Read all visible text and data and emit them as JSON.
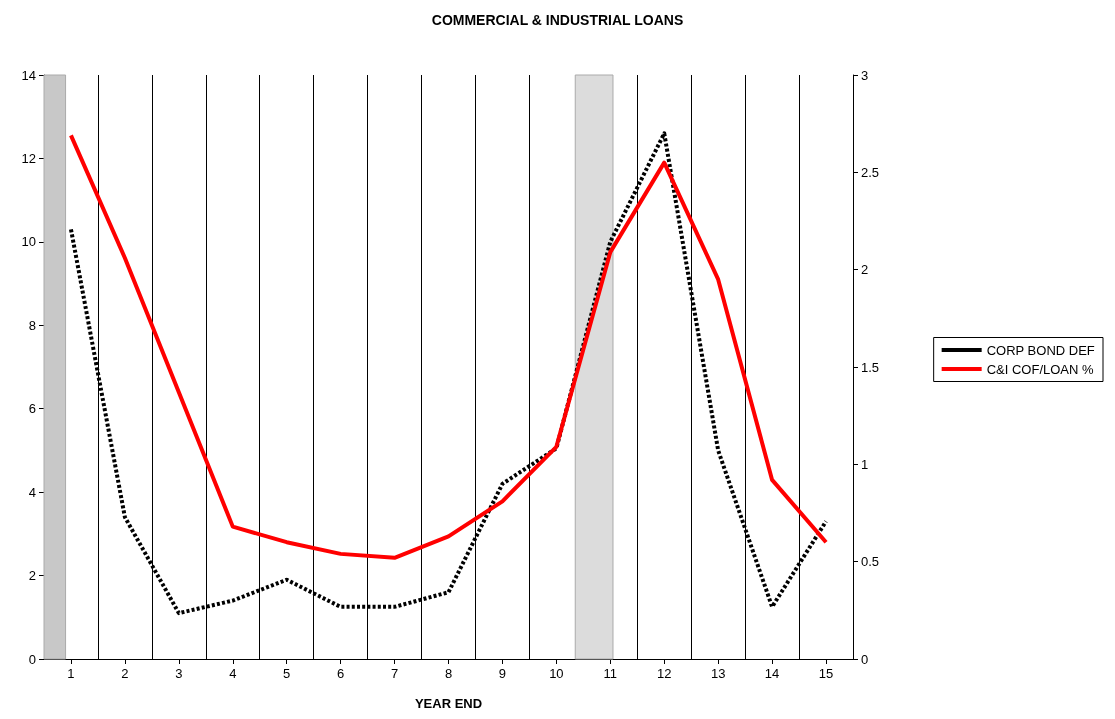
{
  "chart_data": {
    "type": "line",
    "title": "COMMERCIAL & INDUSTRIAL LOANS",
    "xlabel": "YEAR END",
    "x": [
      1,
      2,
      3,
      4,
      5,
      6,
      7,
      8,
      9,
      10,
      11,
      12,
      13,
      14,
      15
    ],
    "xlim": [
      0.5,
      15.5
    ],
    "xticks": [
      1,
      2,
      3,
      4,
      5,
      6,
      7,
      8,
      9,
      10,
      11,
      12,
      13,
      14,
      15
    ],
    "ylim": [
      0,
      14
    ],
    "yticks": [
      0,
      2,
      4,
      6,
      8,
      10,
      12,
      14
    ],
    "y2lim": [
      0,
      3
    ],
    "y2ticks": [
      0,
      0.5,
      1,
      1.5,
      2,
      2.5,
      3
    ],
    "series": [
      {
        "name": "CORP BOND DEF",
        "color": "#000000",
        "line_style": "dashed",
        "values": [
          10.3,
          3.4,
          1.1,
          1.4,
          1.9,
          1.25,
          1.25,
          1.6,
          4.2,
          5.05,
          10.0,
          12.6,
          5.0,
          1.25,
          3.3
        ]
      },
      {
        "name": "C&I COF/LOAN %",
        "color": "#ff0000",
        "line_style": "solid",
        "axis": "y2",
        "values": [
          2.69,
          2.06,
          1.37,
          0.68,
          0.6,
          0.54,
          0.52,
          0.63,
          0.81,
          1.09,
          2.09,
          2.55,
          1.95,
          0.92,
          0.6
        ]
      }
    ],
    "bands": [
      {
        "axis": "x",
        "from": 0.5,
        "to": 0.9,
        "color": "#c8c8c8"
      },
      {
        "axis": "x",
        "from": 10.35,
        "to": 11.05,
        "color": "#dcdcdc"
      }
    ],
    "grid": "x",
    "legend": "right",
    "marker": "none"
  }
}
